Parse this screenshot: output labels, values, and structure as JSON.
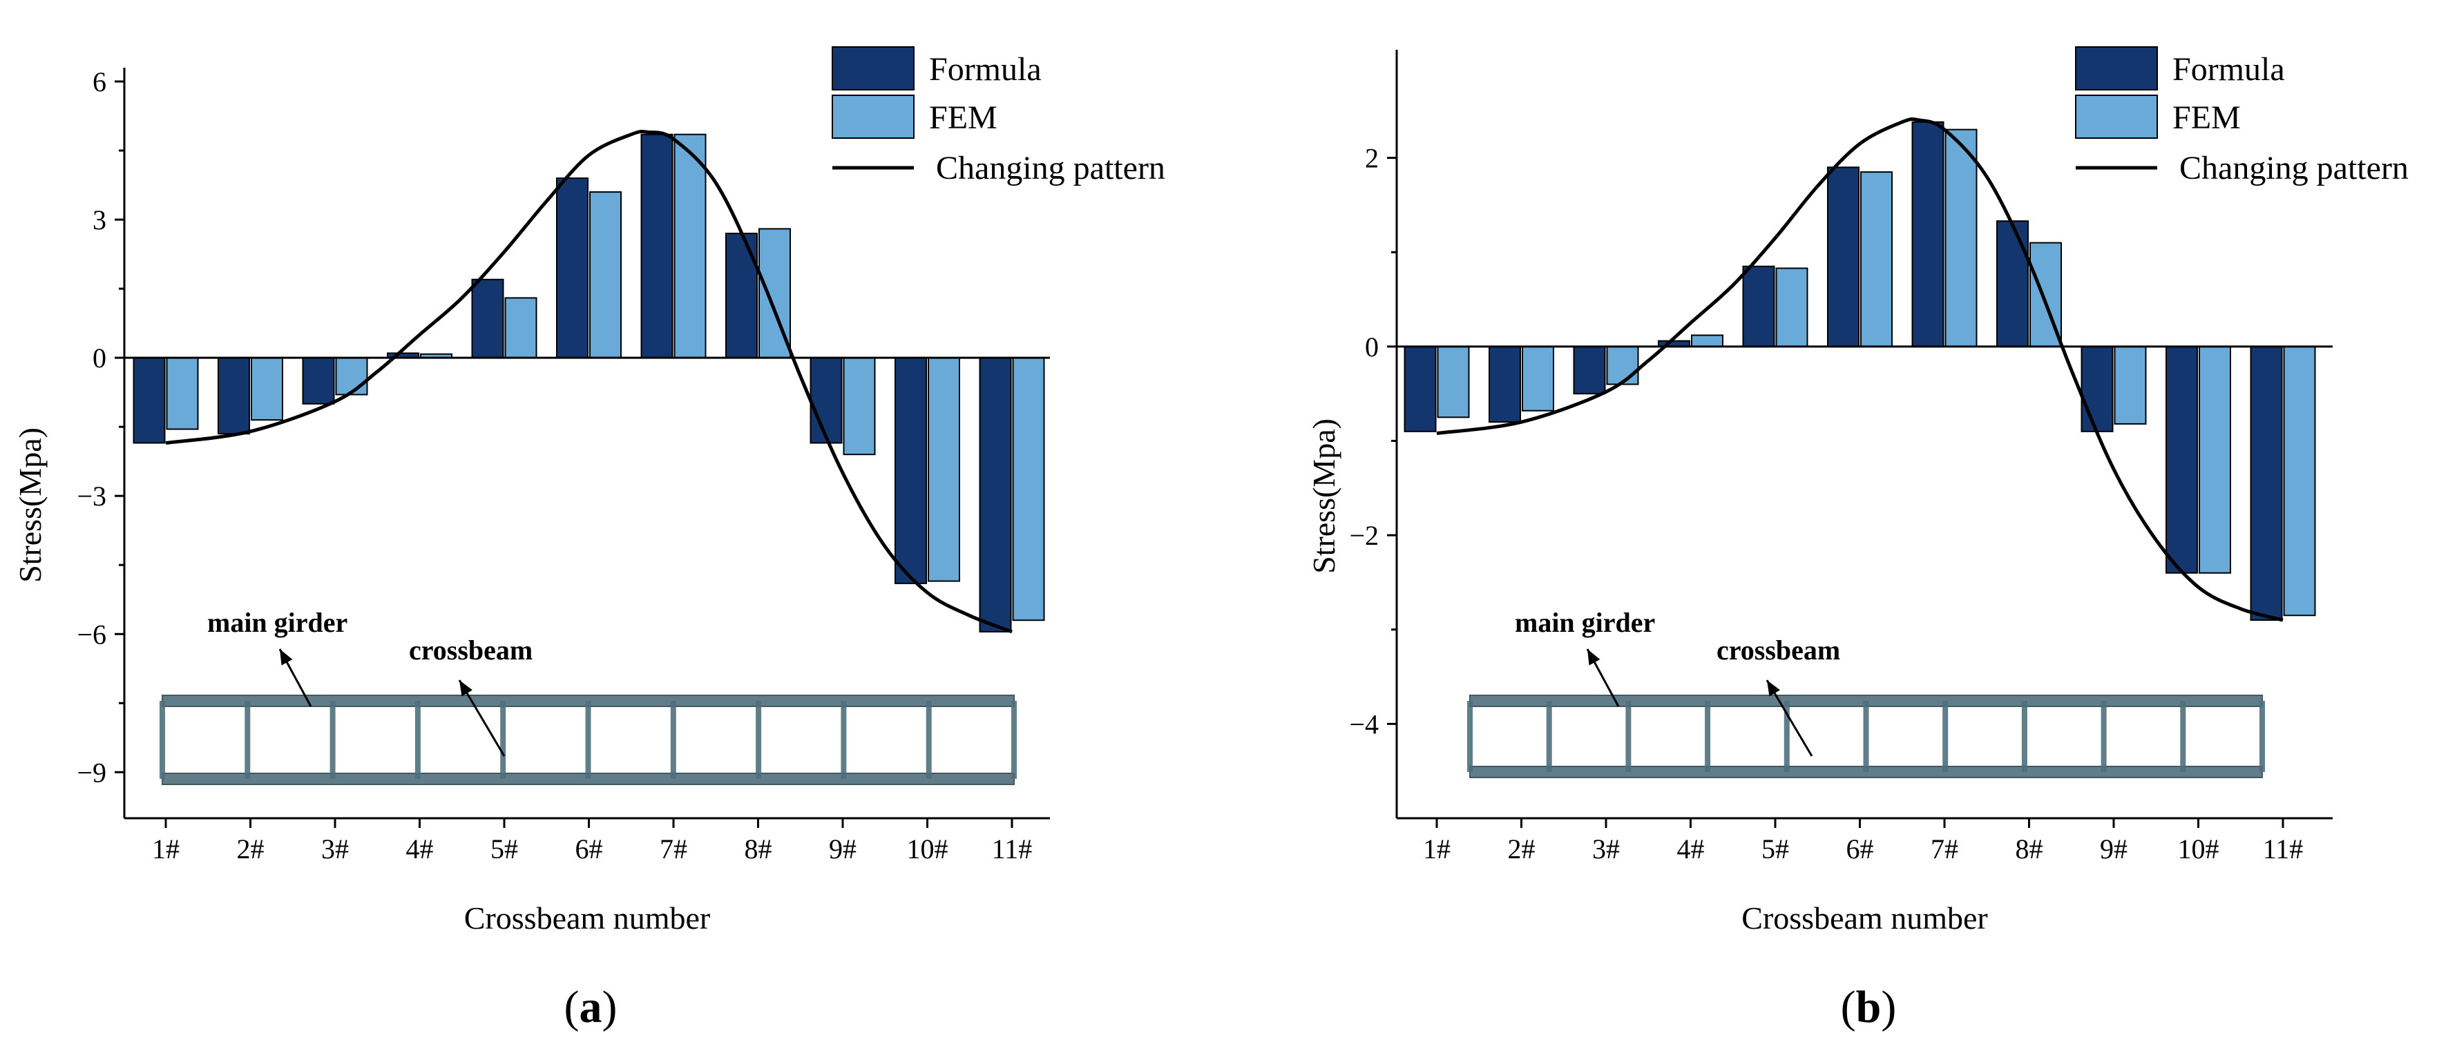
{
  "colors": {
    "formula": "#13366e",
    "fem": "#6aaad8",
    "curve": "#000000",
    "bar_edge": "#000000",
    "girder": "#4f6f7d"
  },
  "chart_data": [
    {
      "type": "bar",
      "panel_label": "a",
      "categories": [
        "1#",
        "2#",
        "3#",
        "4#",
        "5#",
        "6#",
        "7#",
        "8#",
        "9#",
        "10#",
        "11#"
      ],
      "series": [
        {
          "name": "Formula",
          "values": [
            -1.85,
            -1.65,
            -1.0,
            0.1,
            1.7,
            3.9,
            4.85,
            2.7,
            -1.85,
            -4.9,
            -5.95
          ]
        },
        {
          "name": "FEM",
          "values": [
            -1.55,
            -1.35,
            -0.8,
            0.08,
            1.3,
            3.6,
            4.85,
            2.8,
            -2.1,
            -4.85,
            -5.7
          ]
        }
      ],
      "curve": {
        "name": "Changing pattern",
        "x": [
          1,
          2,
          3,
          3.5,
          4,
          4.5,
          5,
          5.5,
          6,
          6.5,
          6.7,
          7,
          7.5,
          8,
          8.5,
          9,
          9.5,
          10,
          10.5,
          11
        ],
        "y": [
          -1.85,
          -1.6,
          -0.95,
          -0.3,
          0.5,
          1.3,
          2.3,
          3.4,
          4.4,
          4.85,
          4.9,
          4.75,
          3.8,
          1.9,
          -0.4,
          -2.5,
          -4.1,
          -5.1,
          -5.6,
          -5.95
        ]
      },
      "xlabel": "Crossbeam number",
      "ylabel": "Stress(Mpa)",
      "ylim": [
        -10,
        6
      ],
      "yticks": [
        6,
        3,
        0,
        -3,
        -6,
        -9
      ],
      "ytick_labels": [
        "6",
        "3",
        "0",
        "−3",
        "−6",
        "−9"
      ],
      "legend": {
        "position": "top-right"
      },
      "annotations": {
        "main_girder": "main girder",
        "crossbeam": "crossbeam"
      }
    },
    {
      "type": "bar",
      "panel_label": "b",
      "categories": [
        "1#",
        "2#",
        "3#",
        "4#",
        "5#",
        "6#",
        "7#",
        "8#",
        "9#",
        "10#",
        "11#"
      ],
      "series": [
        {
          "name": "Formula",
          "values": [
            -0.9,
            -0.8,
            -0.5,
            0.06,
            0.85,
            1.9,
            2.38,
            1.33,
            -0.9,
            -2.4,
            -2.9
          ]
        },
        {
          "name": "FEM",
          "values": [
            -0.75,
            -0.68,
            -0.4,
            0.12,
            0.83,
            1.85,
            2.3,
            1.1,
            -0.82,
            -2.4,
            -2.85
          ]
        }
      ],
      "curve": {
        "name": "Changing pattern",
        "x": [
          1,
          2,
          3,
          3.5,
          4,
          4.5,
          5,
          5.5,
          6,
          6.5,
          6.7,
          7,
          7.5,
          8,
          8.5,
          9,
          9.5,
          10,
          10.5,
          11
        ],
        "y": [
          -0.92,
          -0.8,
          -0.48,
          -0.15,
          0.25,
          0.65,
          1.15,
          1.7,
          2.15,
          2.38,
          2.4,
          2.3,
          1.8,
          0.9,
          -0.25,
          -1.3,
          -2.05,
          -2.55,
          -2.78,
          -2.9
        ]
      },
      "xlabel": "Crossbeam number",
      "ylabel": "Stress(Mpa)",
      "ylim": [
        -5,
        3
      ],
      "yticks": [
        2,
        0,
        -2,
        -4
      ],
      "ytick_labels": [
        "2",
        "0",
        "−2",
        "−4"
      ],
      "legend": {
        "position": "top-right"
      },
      "annotations": {
        "main_girder": "main girder",
        "crossbeam": "crossbeam"
      }
    }
  ]
}
